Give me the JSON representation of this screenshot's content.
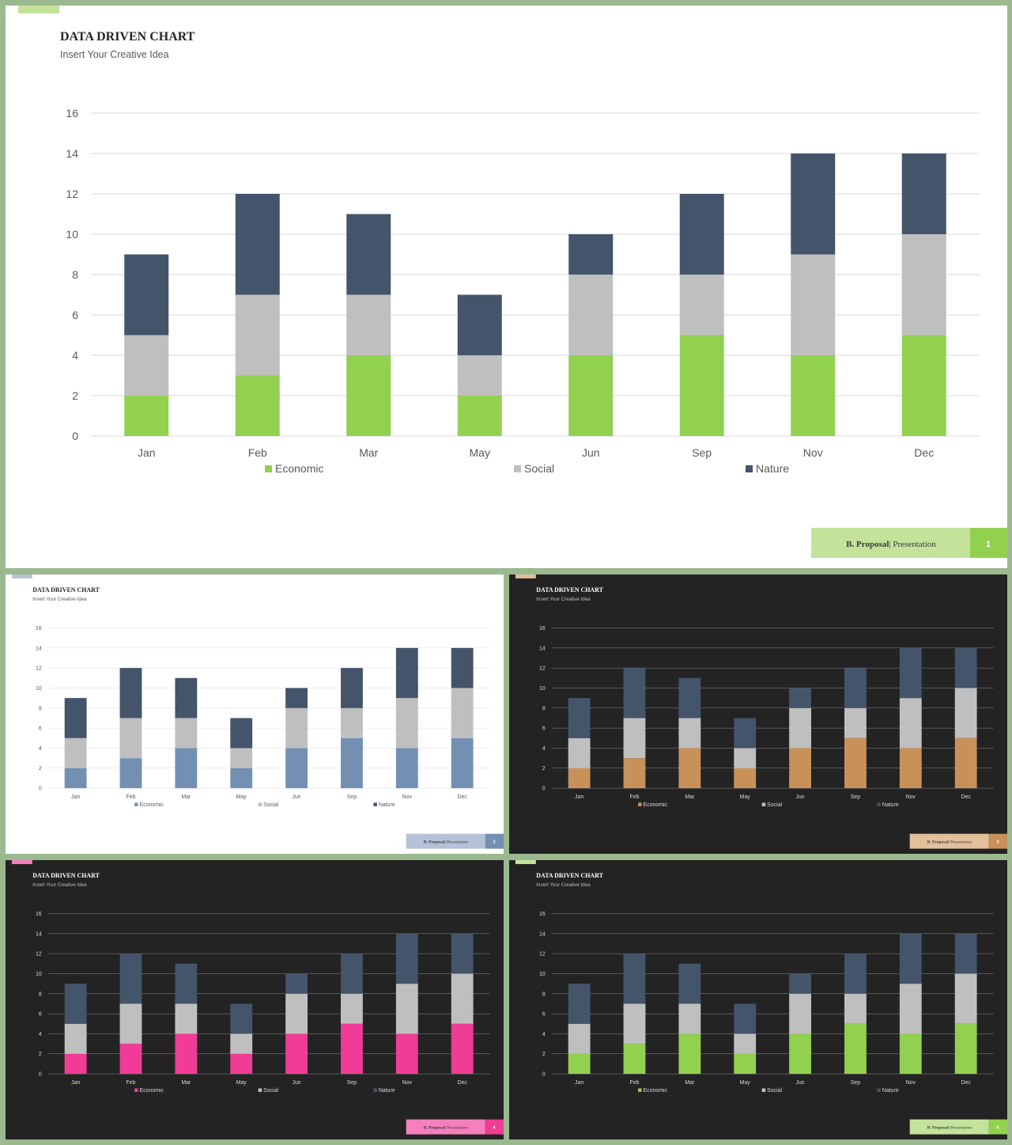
{
  "chart_data": {
    "type": "bar",
    "stacked": true,
    "title": "DATA DRIVEN CHART",
    "subtitle": "Insert Your Creative Idea",
    "categories": [
      "Jan",
      "Feb",
      "Mar",
      "May",
      "Jun",
      "Sep",
      "Nov",
      "Dec"
    ],
    "series": [
      {
        "name": "Economic",
        "values": [
          2,
          3,
          4,
          2,
          4,
          5,
          4,
          5
        ]
      },
      {
        "name": "Social",
        "values": [
          3,
          4,
          3,
          2,
          4,
          3,
          5,
          5
        ]
      },
      {
        "name": "Nature",
        "values": [
          4,
          5,
          4,
          3,
          2,
          4,
          5,
          4
        ]
      }
    ],
    "ylim": [
      0,
      16
    ],
    "yticks": [
      "0",
      "2",
      "4",
      "6",
      "8",
      "10",
      "12",
      "14",
      "16"
    ],
    "grid": true,
    "legend": "bottom"
  },
  "footer": {
    "brand": "B. Proposal",
    "separator": "|",
    "label": "Presentation"
  },
  "slides": [
    {
      "theme": "light",
      "accent": "#92d050",
      "accent_light": "#c3e39b",
      "page": "1"
    },
    {
      "theme": "light",
      "accent": "#7390b3",
      "accent_light": "#b5c1d6",
      "page": "2"
    },
    {
      "theme": "dark",
      "accent": "#c8915a",
      "accent_light": "#e2c09c",
      "page": "3"
    },
    {
      "theme": "dark",
      "accent": "#f03c96",
      "accent_light": "#f57fbd",
      "page": "4"
    },
    {
      "theme": "dark",
      "accent": "#92d050",
      "accent_light": "#c3e39b",
      "page": "5"
    }
  ],
  "colors": {
    "social": "#bfbfbf",
    "nature": "#44546a",
    "grid_light": "#d9d9d9",
    "grid_dark": "#8c8c8c",
    "text_light": "#595959",
    "text_dark": "#d9d9d9"
  }
}
